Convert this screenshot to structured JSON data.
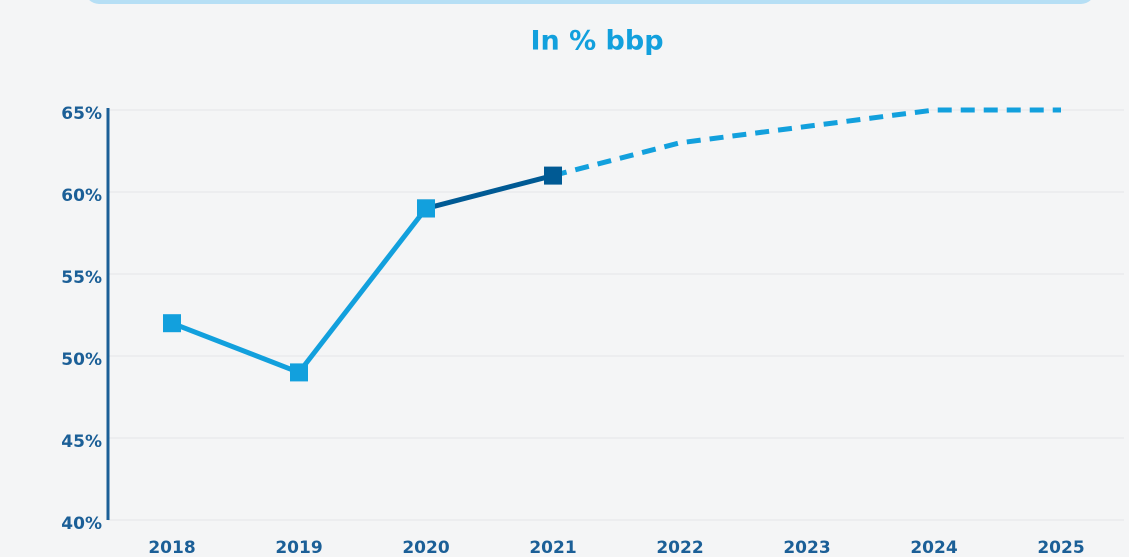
{
  "chart_data": {
    "type": "line",
    "title": "In % bbp",
    "categories": [
      "2018",
      "2019",
      "2020",
      "2021",
      "2022",
      "2023",
      "2024",
      "2025"
    ],
    "series": [
      {
        "color": "#12a0dd",
        "dashed": false,
        "markers": true,
        "values": [
          52,
          49,
          59,
          null,
          null,
          null,
          null,
          null
        ]
      },
      {
        "color": "#005a94",
        "dashed": false,
        "markers": true,
        "values": [
          null,
          null,
          59,
          61,
          null,
          null,
          null,
          null
        ]
      },
      {
        "color": "#12a0dd",
        "dashed": true,
        "markers": false,
        "values": [
          null,
          null,
          null,
          61,
          63,
          64,
          65,
          65
        ]
      }
    ],
    "ylim": [
      40,
      65
    ],
    "yticks": [
      {
        "value": 40,
        "label": "40%"
      },
      {
        "value": 45,
        "label": "45%"
      },
      {
        "value": 50,
        "label": "50%"
      },
      {
        "value": 55,
        "label": "55%"
      },
      {
        "value": 60,
        "label": "60%"
      },
      {
        "value": 65,
        "label": "65%"
      }
    ],
    "grid": true
  }
}
